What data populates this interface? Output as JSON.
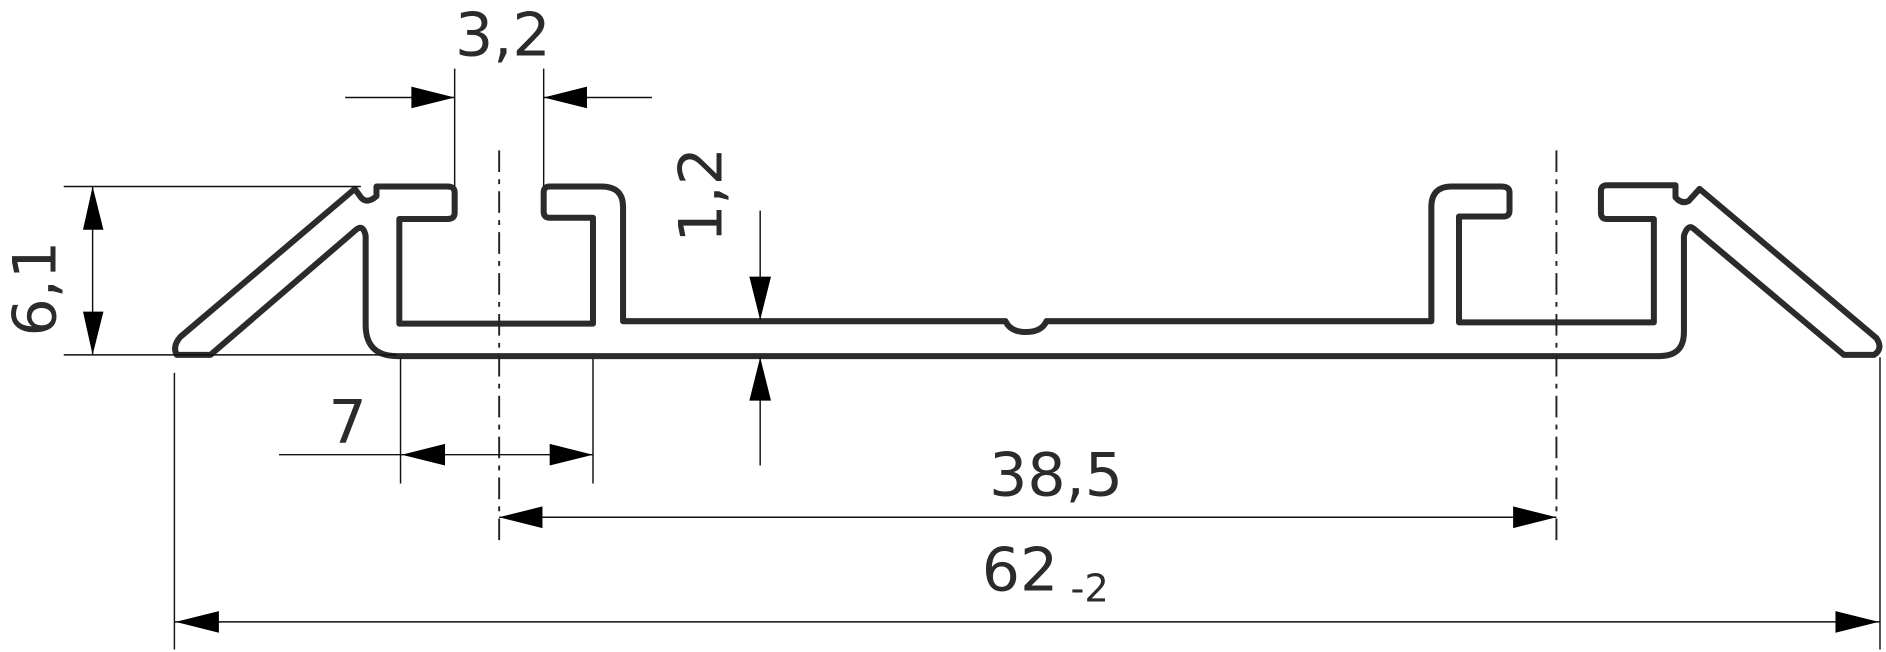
{
  "drawing": {
    "dimensions": {
      "height": "6,1",
      "slot_width": "3,2",
      "wall_thickness": "1,2",
      "flange_offset": "7",
      "center_distance": "38,5",
      "overall_width": "62",
      "overall_width_tolerance": "-2"
    },
    "line_color": "#2b2b2b"
  }
}
